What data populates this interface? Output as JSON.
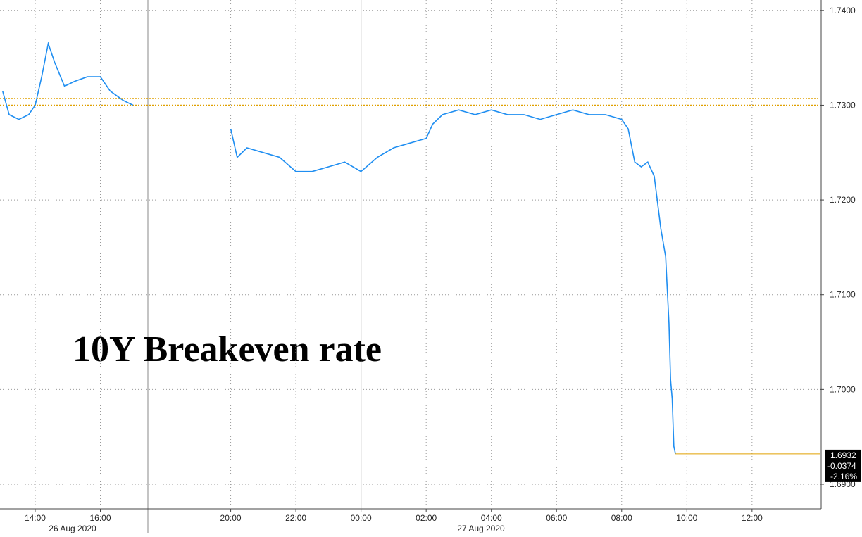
{
  "chart_data": {
    "type": "line",
    "title": "10Y Breakeven rate",
    "date_labels": [
      "26 Aug 2020",
      "27 Aug 2020"
    ],
    "x": [
      13.0,
      13.2,
      13.5,
      13.8,
      14.0,
      14.2,
      14.4,
      14.6,
      14.9,
      15.2,
      15.6,
      16.0,
      16.3,
      16.7,
      17.0,
      18.5,
      20.0,
      20.2,
      20.5,
      21.0,
      21.5,
      22.0,
      22.5,
      23.0,
      23.5,
      24.0,
      24.5,
      25.0,
      25.5,
      26.0,
      26.2,
      26.5,
      27.0,
      27.5,
      28.0,
      28.5,
      29.0,
      29.5,
      30.0,
      30.5,
      31.0,
      31.5,
      32.0,
      32.2,
      32.4,
      32.6,
      32.8,
      33.0,
      33.2,
      33.35,
      33.45,
      33.5,
      33.55,
      33.6,
      33.65
    ],
    "series": [
      {
        "name": "10Y Breakeven",
        "color": "#1f8ef1",
        "values": [
          1.7315,
          1.729,
          1.7285,
          1.729,
          1.73,
          1.733,
          1.7365,
          1.7345,
          1.732,
          1.7325,
          1.733,
          1.733,
          1.7315,
          1.7305,
          1.73,
          null,
          1.7275,
          1.7245,
          1.7255,
          1.725,
          1.7245,
          1.723,
          1.723,
          1.7235,
          1.724,
          1.723,
          1.7245,
          1.7255,
          1.726,
          1.7265,
          1.728,
          1.729,
          1.7295,
          1.729,
          1.7295,
          1.729,
          1.729,
          1.7285,
          1.729,
          1.7295,
          1.729,
          1.729,
          1.7285,
          1.7275,
          1.724,
          1.7235,
          1.724,
          1.7225,
          1.717,
          1.714,
          1.707,
          1.701,
          1.699,
          1.694,
          1.6932
        ]
      }
    ],
    "xlim": [
      12.92,
      38.1
    ],
    "xticks": [
      {
        "value": 14,
        "label": "14:00"
      },
      {
        "value": 16,
        "label": "16:00"
      },
      {
        "value": 20,
        "label": "20:00"
      },
      {
        "value": 22,
        "label": "22:00"
      },
      {
        "value": 24,
        "label": "00:00"
      },
      {
        "value": 26,
        "label": "02:00"
      },
      {
        "value": 28,
        "label": "04:00"
      },
      {
        "value": 30,
        "label": "06:00"
      },
      {
        "value": 32,
        "label": "08:00"
      },
      {
        "value": 34,
        "label": "10:00"
      },
      {
        "value": 36,
        "label": "12:00"
      }
    ],
    "ylim": [
      1.6874,
      1.7411
    ],
    "yticks": [
      {
        "value": 1.69,
        "label": "1.6900"
      },
      {
        "value": 1.7,
        "label": "1.7000"
      },
      {
        "value": 1.71,
        "label": "1.7100"
      },
      {
        "value": 1.72,
        "label": "1.7200"
      },
      {
        "value": 1.73,
        "label": "1.7300"
      },
      {
        "value": 1.74,
        "label": "1.7400"
      }
    ],
    "grid": true,
    "reference_lines": [
      1.7307,
      1.73
    ],
    "reference_color": "#e0a000",
    "last_value": 1.6932,
    "net_change": -0.0374,
    "pct_change": "-2.16%"
  }
}
